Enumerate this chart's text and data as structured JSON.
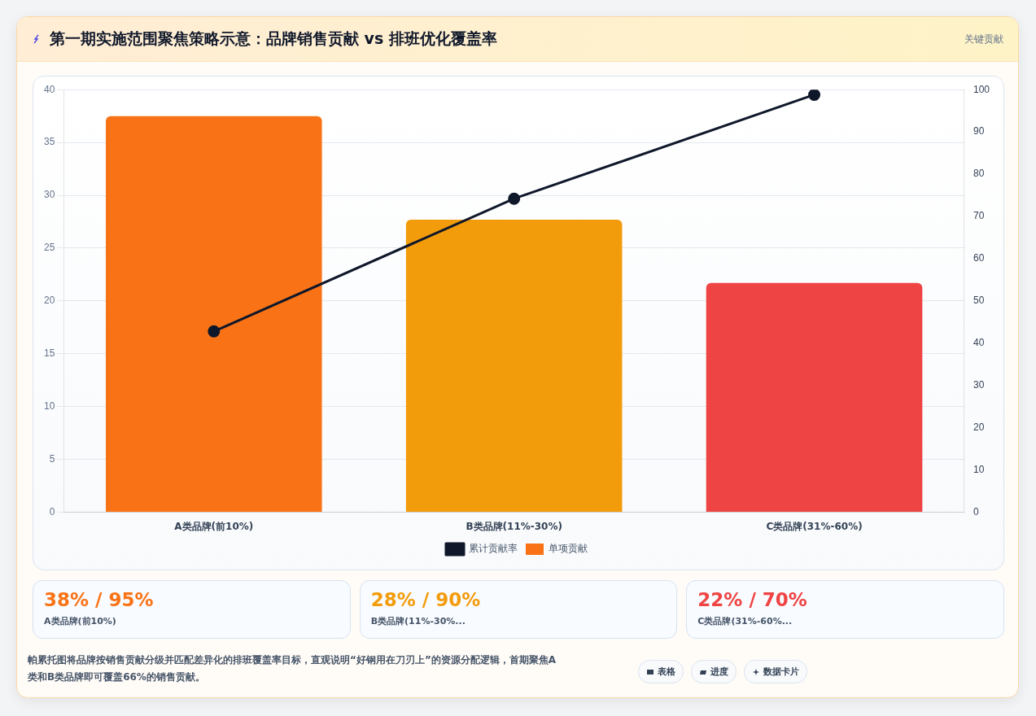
{
  "chart_data": {
    "type": "bar",
    "title": "第一期实施范围聚焦策略示意：品牌销售贡献 vs 排班优化覆盖率",
    "categories": [
      "A类品牌(前10%)",
      "B类品牌(11%-30%)",
      "C类品牌(31%-60%)"
    ],
    "series": [
      {
        "name": "累计贡献率",
        "type": "line",
        "axis": "y2",
        "color": "#0f172a",
        "values": [
          42.8,
          74.2,
          98.8
        ]
      },
      {
        "name": "单项贡献",
        "colors": [
          "#f97316",
          "#f39c0b",
          "#ef4444"
        ],
        "values": [
          37.5,
          27.7,
          21.7
        ]
      }
    ],
    "ylim": [
      0,
      40
    ],
    "yticks": [
      0,
      5,
      10,
      15,
      20,
      25,
      30,
      35,
      40
    ],
    "y2lim": [
      0,
      100
    ],
    "y2ticks": [
      0,
      10,
      20,
      30,
      40,
      50,
      60,
      70,
      80,
      90,
      100
    ],
    "grid": "y",
    "legend": "bottom",
    "marker": "circle",
    "annotations": [
      "关键贡献",
      "38% / 95%",
      "A类品牌(前10%)",
      "28% / 90%",
      "B类品牌(11%-30%...",
      "22% / 70%",
      "C类品牌(31%-60%...",
      "帕累托图将品牌按销售贡献分级并匹配差异化的排班覆盖率目标，直观说明“好钢用在刀刃上”的资源分配逻辑，首期聚焦A类和B类品牌即可覆盖66%的销售贡献。",
      "表格",
      "进度",
      "数据卡片"
    ]
  }
}
